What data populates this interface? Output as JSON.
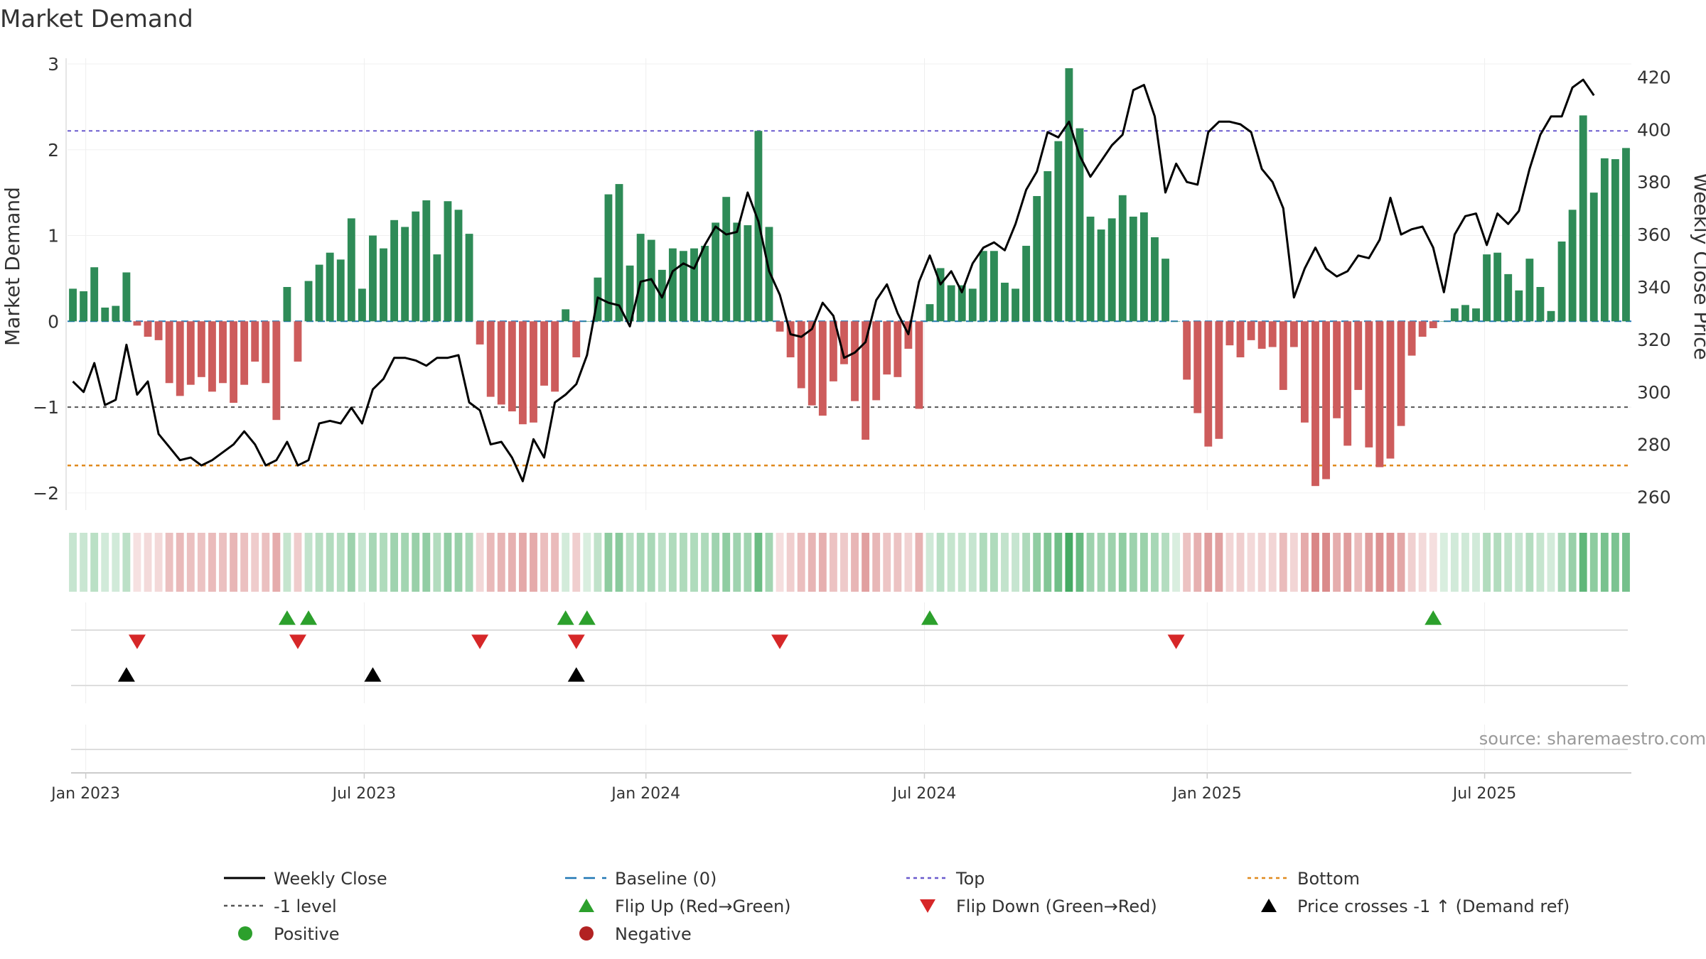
{
  "chart_data": {
    "type": "bar",
    "title": "Market Demand",
    "ylabel_left": "Market Demand",
    "ylabel_right": "Weekly Close Price",
    "source": "source: sharemaestro.com",
    "ylim_left": [
      -2.2,
      3.0
    ],
    "yticks_left": [
      "3",
      "2",
      "1",
      "0",
      "−1",
      "−2"
    ],
    "ytick_values_left": [
      3,
      2,
      1,
      0,
      -1,
      -2
    ],
    "ylim_right": [
      255,
      425
    ],
    "yticks_right": [
      "420",
      "400",
      "380",
      "360",
      "340",
      "320",
      "300",
      "280",
      "260"
    ],
    "ytick_values_right": [
      420,
      400,
      380,
      360,
      340,
      320,
      300,
      280,
      260
    ],
    "xtick_labels": [
      "Jan 2023",
      "Jul 2023",
      "Jan 2024",
      "Jul 2024",
      "Jan 2025",
      "Jul 2025"
    ],
    "xtick_weeks": [
      1.7,
      27.7,
      54,
      80,
      106.4,
      132.3
    ],
    "reference_lines": {
      "top": 2.22,
      "minus_one": -1.0,
      "bottom": -1.68,
      "baseline": 0
    },
    "demand": [
      0.38,
      0.35,
      0.63,
      0.16,
      0.18,
      0.57,
      -0.05,
      -0.18,
      -0.22,
      -0.72,
      -0.87,
      -0.74,
      -0.65,
      -0.82,
      -0.72,
      -0.95,
      -0.74,
      -0.47,
      -0.72,
      -1.15,
      0.4,
      -0.47,
      0.47,
      0.66,
      0.8,
      0.72,
      1.2,
      0.38,
      1.0,
      0.85,
      1.18,
      1.1,
      1.28,
      1.41,
      0.78,
      1.4,
      1.3,
      1.02,
      -0.27,
      -0.88,
      -0.97,
      -1.05,
      -1.2,
      -1.18,
      -0.75,
      -0.82,
      0.14,
      -0.42,
      0.0,
      0.51,
      1.48,
      1.6,
      0.65,
      1.02,
      0.95,
      0.6,
      0.85,
      0.82,
      0.85,
      0.88,
      1.15,
      1.45,
      1.15,
      1.12,
      2.22,
      1.1,
      -0.12,
      -0.42,
      -0.78,
      -0.98,
      -1.1,
      -0.7,
      -0.5,
      -0.93,
      -1.38,
      -0.92,
      -0.62,
      -0.65,
      -0.32,
      -1.02,
      0.2,
      0.62,
      0.42,
      0.42,
      0.38,
      0.82,
      0.82,
      0.45,
      0.38,
      0.88,
      1.46,
      1.75,
      2.1,
      2.95,
      2.25,
      1.22,
      1.07,
      1.2,
      1.47,
      1.22,
      1.27,
      0.98,
      0.73,
      0.0,
      -0.68,
      -1.07,
      -1.46,
      -1.37,
      -0.28,
      -0.42,
      -0.22,
      -0.32,
      -0.3,
      -0.8,
      -0.3,
      -1.18,
      -1.92,
      -1.84,
      -1.13,
      -1.45,
      -0.8,
      -1.47,
      -1.7,
      -1.6,
      -1.22,
      -0.4,
      -0.18,
      -0.08,
      0.0,
      0.15,
      0.19,
      0.15,
      0.78,
      0.8,
      0.55,
      0.36,
      0.73,
      0.4,
      0.12,
      0.93,
      1.3,
      2.4,
      1.5,
      1.9,
      1.89,
      2.02
    ],
    "price": [
      304,
      300,
      311,
      295,
      297,
      318,
      299,
      304,
      284,
      279,
      274,
      275,
      272,
      274,
      277,
      280,
      285,
      280,
      272,
      274,
      281,
      272,
      274,
      288,
      289,
      288,
      294,
      288,
      301,
      305,
      313,
      313,
      312,
      310,
      313,
      313,
      314,
      296,
      293,
      280,
      281,
      275,
      266,
      282,
      275,
      296,
      299,
      303,
      314,
      336,
      334,
      333,
      325,
      342,
      343,
      336,
      346,
      349,
      347,
      356,
      363,
      360,
      361,
      376,
      365,
      346,
      337,
      322,
      321,
      324,
      334,
      329,
      313,
      315,
      319,
      335,
      341,
      330,
      322,
      342,
      352,
      341,
      346,
      338,
      349,
      355,
      357,
      354,
      364,
      377,
      384,
      399,
      397,
      403,
      390,
      382,
      388,
      394,
      398,
      415,
      417,
      405,
      376,
      387,
      380,
      379,
      399,
      403,
      403,
      402,
      399,
      385,
      380,
      370,
      336,
      347,
      355,
      347,
      344,
      346,
      352,
      351,
      358,
      374,
      360,
      362,
      363,
      355,
      338,
      360,
      367,
      368,
      356,
      368,
      364,
      369,
      385,
      398,
      405,
      405,
      416,
      419,
      413
    ]
  },
  "legend": [
    {
      "label": "Weekly Close",
      "marker": "solid-line",
      "color": "#000000"
    },
    {
      "label": "Baseline (0)",
      "marker": "dashed-line",
      "color": "#1f77b4"
    },
    {
      "label": "Top",
      "marker": "dotted-line",
      "color": "#6a5acd"
    },
    {
      "label": "Bottom",
      "marker": "dotted-line",
      "color": "#e08a1e"
    },
    {
      "label": "-1 level",
      "marker": "dotted-line",
      "color": "#555555"
    },
    {
      "label": "Flip Up (Red→Green)",
      "marker": "triangle-up",
      "color": "#2ca02c"
    },
    {
      "label": "Flip Down (Green→Red)",
      "marker": "triangle-down",
      "color": "#d62728"
    },
    {
      "label": "Price crosses -1 ↑ (Demand ref)",
      "marker": "triangle-up",
      "color": "#000000"
    },
    {
      "label": "Positive",
      "marker": "circle",
      "color": "#2ca02c"
    },
    {
      "label": "Negative",
      "marker": "circle",
      "color": "#b22222"
    }
  ],
  "colors": {
    "positive_bar": "#2e8b57",
    "negative_bar": "#cd5c5c",
    "flip_up": "#2ca02c",
    "flip_down": "#d62728",
    "cross": "#000000",
    "price_line": "#000000"
  },
  "events": {
    "flip_up_weeks": [
      20,
      22,
      46,
      48,
      80,
      127
    ],
    "flip_down_weeks": [
      6,
      21,
      38,
      47,
      66,
      103
    ],
    "price_cross_weeks": [
      5,
      28,
      47
    ]
  }
}
